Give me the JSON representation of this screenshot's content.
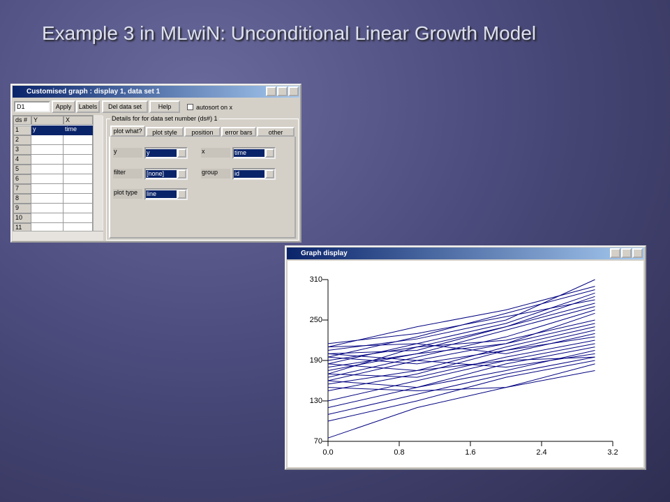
{
  "title": "Example 3 in MLwiN: Unconditional Linear Growth Model",
  "dialog": {
    "title": "Customised graph : display  1, data set 1",
    "dataset_select": "D1",
    "buttons": [
      "Apply",
      "Labels",
      "Del data set",
      "Help"
    ],
    "checkbox": "autosort on x",
    "grid_headers": [
      "ds #",
      "Y",
      "X"
    ],
    "row_numbers": [
      "1",
      "2",
      "3",
      "4",
      "5",
      "6",
      "7",
      "8",
      "9",
      "10",
      "11"
    ],
    "first_row": [
      "y",
      "time"
    ],
    "details_title": "Details for for data set number (ds#) 1",
    "tabs": [
      "plot what?",
      "plot style",
      "position",
      "error bars",
      "other"
    ],
    "fields": [
      {
        "label": "y",
        "value": "y"
      },
      {
        "label": "x",
        "value": "time"
      },
      {
        "label": "filter",
        "value": "[none]"
      },
      {
        "label": "group",
        "value": "id"
      },
      {
        "label": "plot type",
        "value": "line"
      }
    ]
  },
  "graph_window": {
    "title": "Graph display"
  },
  "chart_data": {
    "type": "line",
    "color": "#000080",
    "x": [
      0,
      1,
      2,
      3
    ],
    "xlim": [
      0,
      3.2
    ],
    "xticks": [
      {
        "value": 0,
        "label": "0.0"
      },
      {
        "value": 0.8,
        "label": "0.8"
      },
      {
        "value": 1.6,
        "label": "1.6"
      },
      {
        "value": 2.4,
        "label": "2.4"
      },
      {
        "value": 3.2,
        "label": "3.2"
      }
    ],
    "ylim": [
      70,
      310
    ],
    "yticks": [
      70,
      130,
      190,
      250,
      310
    ],
    "series": [
      {
        "values": [
          205,
          222,
          250,
          310
        ]
      },
      {
        "values": [
          210,
          240,
          265,
          300
        ]
      },
      {
        "values": [
          195,
          225,
          260,
          295
        ]
      },
      {
        "values": [
          185,
          215,
          245,
          290
        ]
      },
      {
        "values": [
          170,
          210,
          240,
          285
        ]
      },
      {
        "values": [
          215,
          230,
          255,
          280
        ]
      },
      {
        "values": [
          200,
          205,
          240,
          275
        ]
      },
      {
        "values": [
          180,
          200,
          235,
          270
        ]
      },
      {
        "values": [
          165,
          195,
          225,
          265
        ]
      },
      {
        "values": [
          160,
          190,
          215,
          260
        ]
      },
      {
        "values": [
          190,
          210,
          220,
          250
        ]
      },
      {
        "values": [
          175,
          200,
          215,
          245
        ]
      },
      {
        "values": [
          155,
          175,
          210,
          240
        ]
      },
      {
        "values": [
          145,
          170,
          205,
          235
        ]
      },
      {
        "values": [
          210,
          215,
          200,
          230
        ]
      },
      {
        "values": [
          195,
          185,
          205,
          225
        ]
      },
      {
        "values": [
          170,
          165,
          195,
          220
        ]
      },
      {
        "values": [
          130,
          160,
          190,
          215
        ]
      },
      {
        "values": [
          120,
          150,
          185,
          210
        ]
      },
      {
        "values": [
          160,
          150,
          175,
          205
        ]
      },
      {
        "values": [
          200,
          190,
          180,
          200
        ]
      },
      {
        "values": [
          110,
          140,
          170,
          195
        ]
      },
      {
        "values": [
          100,
          130,
          165,
          190
        ]
      },
      {
        "values": [
          75,
          120,
          150,
          175
        ]
      },
      {
        "values": [
          150,
          145,
          150,
          185
        ]
      },
      {
        "values": [
          185,
          175,
          190,
          195
        ]
      }
    ]
  }
}
